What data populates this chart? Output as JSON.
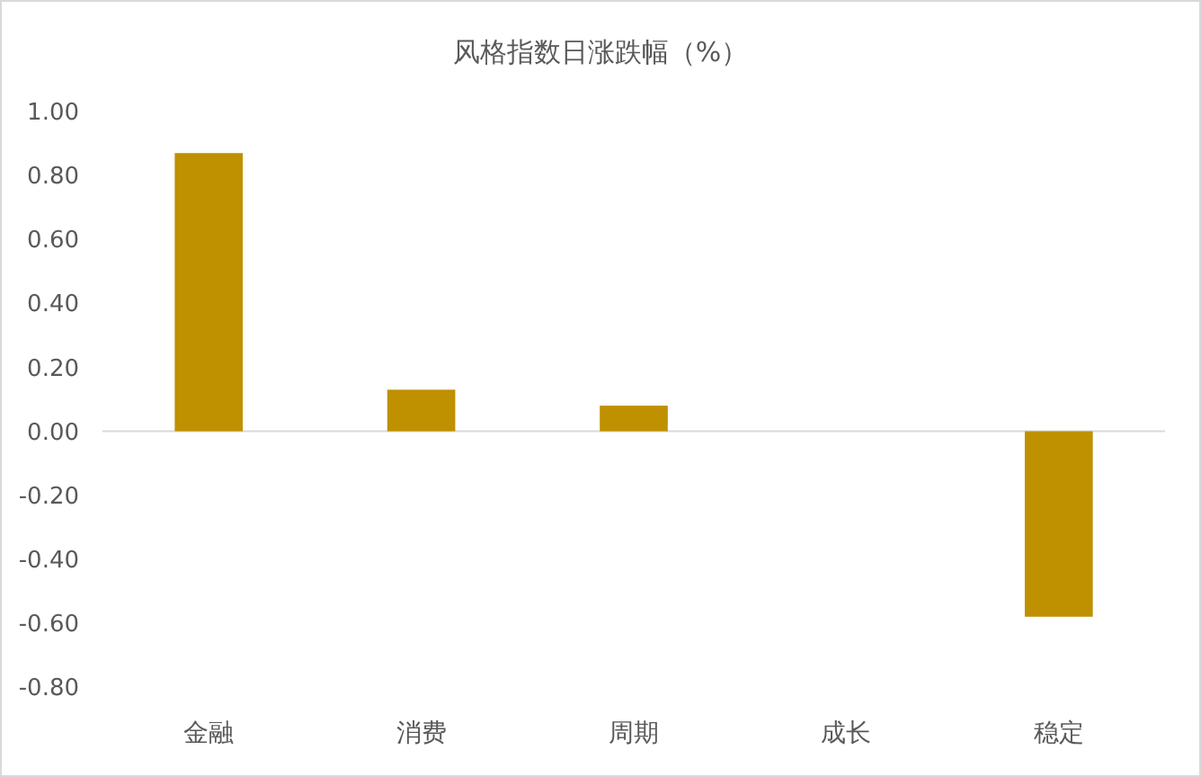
{
  "chart_data": {
    "type": "bar",
    "title": "风格指数日涨跌幅（%）",
    "categories": [
      "金融",
      "消费",
      "周期",
      "成长",
      "稳定"
    ],
    "values": [
      0.87,
      0.13,
      0.08,
      0,
      -0.58
    ],
    "color": "#bf9000",
    "ylim": [
      -0.8,
      1.0
    ],
    "yticks": [
      {
        "value": -0.8,
        "label": "-0.80"
      },
      {
        "value": -0.6,
        "label": "-0.60"
      },
      {
        "value": -0.4,
        "label": "-0.40"
      },
      {
        "value": -0.2,
        "label": "-0.20"
      },
      {
        "value": 0,
        "label": "0.00"
      },
      {
        "value": 0.2,
        "label": "0.20"
      },
      {
        "value": 0.4,
        "label": "0.40"
      },
      {
        "value": 0.6,
        "label": "0.60"
      },
      {
        "value": 0.8,
        "label": "0.80"
      },
      {
        "value": 1.0,
        "label": "1.00"
      }
    ]
  }
}
